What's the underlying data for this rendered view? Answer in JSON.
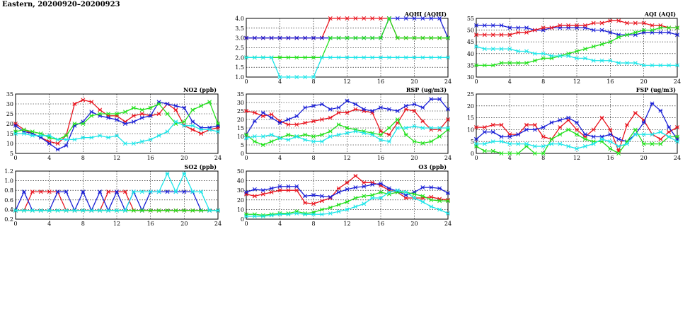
{
  "page": {
    "title": "Eastern, 20200920–20200923"
  },
  "colors": {
    "red": "#e8141e",
    "blue": "#1a1fd6",
    "green": "#22e01c",
    "cyan": "#1de5e8"
  },
  "chart_data": [
    {
      "id": "aqhi",
      "type": "line",
      "title": "AQHI (AQHI)",
      "xlim": [
        0,
        24
      ],
      "ylim": [
        1.0,
        4.0
      ],
      "xticks": [
        "0",
        "4",
        "8",
        "12",
        "16",
        "20",
        "24"
      ],
      "yticks": [
        "1.0",
        "1.5",
        "2.0",
        "2.5",
        "3.0",
        "3.5",
        "4.0"
      ],
      "grid": true,
      "series": [
        {
          "color": "red",
          "values": [
            3,
            3,
            3,
            3,
            3,
            3,
            3,
            3,
            3,
            3,
            4,
            4,
            4,
            4,
            4,
            4,
            4,
            4,
            3,
            3,
            3,
            3,
            3,
            3,
            3
          ]
        },
        {
          "color": "blue",
          "values": [
            3,
            3,
            3,
            3,
            3,
            3,
            3,
            3,
            3,
            3,
            3,
            3,
            3,
            3,
            3,
            3,
            3,
            4,
            4,
            4,
            4,
            4,
            4,
            4,
            3
          ]
        },
        {
          "color": "green",
          "values": [
            2,
            2,
            2,
            2,
            2,
            2,
            2,
            2,
            2,
            2,
            3,
            3,
            3,
            3,
            3,
            3,
            3,
            4,
            3,
            3,
            3,
            3,
            3,
            3,
            3
          ]
        },
        {
          "color": "cyan",
          "values": [
            2,
            2,
            2,
            2,
            1,
            1,
            1,
            1,
            1,
            2,
            2,
            2,
            2,
            2,
            2,
            2,
            2,
            2,
            2,
            2,
            2,
            2,
            2,
            2,
            2
          ]
        }
      ]
    },
    {
      "id": "aqi",
      "type": "line",
      "title": "AQI (AQI)",
      "xlim": [
        0,
        24
      ],
      "ylim": [
        30,
        55
      ],
      "xticks": [
        "0",
        "4",
        "8",
        "12",
        "16",
        "20",
        "24"
      ],
      "yticks": [
        "30",
        "35",
        "40",
        "45",
        "50",
        "55"
      ],
      "grid": true,
      "series": [
        {
          "color": "blue",
          "values": [
            52,
            52,
            52,
            52,
            51,
            51,
            51,
            50,
            50,
            51,
            51,
            51,
            51,
            51,
            50,
            50,
            49,
            48,
            48,
            48,
            49,
            49,
            49,
            49,
            48
          ]
        },
        {
          "color": "red",
          "values": [
            48,
            48,
            48,
            48,
            48,
            49,
            49,
            50,
            51,
            51,
            52,
            52,
            52,
            52,
            53,
            53,
            54,
            54,
            53,
            53,
            53,
            52,
            52,
            51,
            51
          ]
        },
        {
          "color": "green",
          "values": [
            35,
            35,
            35,
            36,
            36,
            36,
            36,
            37,
            38,
            38,
            39,
            40,
            41,
            42,
            43,
            44,
            45,
            47,
            48,
            49,
            50,
            50,
            51,
            51,
            51
          ]
        },
        {
          "color": "cyan",
          "values": [
            43,
            42,
            42,
            42,
            42,
            41,
            41,
            40,
            40,
            39,
            39,
            39,
            38,
            38,
            37,
            37,
            37,
            36,
            36,
            36,
            35,
            35,
            35,
            35,
            35
          ]
        }
      ]
    },
    {
      "id": "no2",
      "type": "line",
      "title": "NO2 (ppb)",
      "xlim": [
        0,
        24
      ],
      "ylim": [
        5,
        35
      ],
      "xticks": [
        "0",
        "4",
        "8",
        "12",
        "16",
        "20",
        "24"
      ],
      "yticks": [
        "5",
        "10",
        "15",
        "20",
        "25",
        "30",
        "35"
      ],
      "grid": true,
      "series": [
        {
          "color": "red",
          "values": [
            20,
            17,
            15,
            13,
            11,
            10,
            14,
            30,
            32,
            31,
            27,
            24,
            24,
            21,
            24,
            25,
            24,
            25,
            30,
            27,
            19,
            17,
            15,
            17,
            18
          ]
        },
        {
          "color": "blue",
          "values": [
            19,
            16,
            15,
            13,
            10,
            7,
            9,
            19,
            21,
            26,
            24,
            23,
            22,
            20,
            21,
            23,
            24,
            31,
            30,
            29,
            28,
            21,
            18,
            18,
            19
          ]
        },
        {
          "color": "green",
          "values": [
            16,
            17,
            16,
            15,
            13,
            12,
            14,
            20,
            20,
            24,
            25,
            25,
            25,
            26,
            28,
            27,
            28,
            30,
            25,
            20,
            21,
            27,
            29,
            31,
            20
          ]
        },
        {
          "color": "cyan",
          "values": [
            15,
            15,
            14,
            14,
            14,
            12,
            12,
            12,
            13,
            13,
            14,
            13,
            14,
            10,
            10,
            11,
            12,
            14,
            16,
            21,
            19,
            19,
            17,
            17,
            16
          ]
        }
      ]
    },
    {
      "id": "rsp",
      "type": "line",
      "title": "RSP (ug/m3)",
      "xlim": [
        0,
        24
      ],
      "ylim": [
        0,
        35
      ],
      "xticks": [
        "0",
        "4",
        "8",
        "12",
        "16",
        "20",
        "24"
      ],
      "yticks": [
        "0",
        "5",
        "10",
        "15",
        "20",
        "25",
        "30",
        "35"
      ],
      "grid": true,
      "series": [
        {
          "color": "red",
          "values": [
            25,
            24,
            22,
            23,
            19,
            17,
            17,
            18,
            19,
            20,
            21,
            24,
            24,
            26,
            25,
            24,
            13,
            11,
            18,
            26,
            25,
            19,
            14,
            14,
            20
          ]
        },
        {
          "color": "blue",
          "values": [
            11,
            19,
            24,
            21,
            18,
            20,
            22,
            27,
            28,
            29,
            26,
            27,
            31,
            29,
            26,
            25,
            27,
            26,
            25,
            28,
            29,
            27,
            32,
            32,
            26
          ]
        },
        {
          "color": "green",
          "values": [
            11,
            7,
            5,
            7,
            9,
            11,
            10,
            11,
            10,
            11,
            13,
            17,
            15,
            14,
            13,
            12,
            11,
            15,
            20,
            11,
            7,
            6,
            7,
            10,
            14
          ]
        },
        {
          "color": "cyan",
          "values": [
            9,
            10,
            10,
            11,
            9,
            8,
            10,
            8,
            7,
            7,
            10,
            11,
            12,
            13,
            12,
            11,
            8,
            7,
            15,
            15,
            16,
            15,
            15,
            15,
            15
          ]
        }
      ]
    },
    {
      "id": "fsp",
      "type": "line",
      "title": "FSP (ug/m3)",
      "xlim": [
        0,
        24
      ],
      "ylim": [
        0,
        25
      ],
      "xticks": [
        "0",
        "4",
        "8",
        "12",
        "16",
        "20",
        "24"
      ],
      "yticks": [
        "0",
        "5",
        "10",
        "15",
        "20",
        "25"
      ],
      "grid": true,
      "series": [
        {
          "color": "red",
          "values": [
            11,
            11,
            12,
            12,
            8,
            8,
            12,
            12,
            7,
            6,
            11,
            14,
            10,
            7,
            10,
            15,
            10,
            1,
            12,
            17,
            14,
            8,
            6,
            9,
            11
          ]
        },
        {
          "color": "blue",
          "values": [
            6,
            9,
            9,
            7,
            7,
            8,
            10,
            10,
            11,
            13,
            14,
            15,
            13,
            8,
            7,
            7,
            8,
            6,
            5,
            8,
            13,
            21,
            18,
            11,
            6
          ]
        },
        {
          "color": "green",
          "values": [
            3,
            1,
            1,
            0,
            0,
            0,
            3,
            0,
            0,
            6,
            8,
            10,
            8,
            6,
            5,
            5,
            2,
            0,
            5,
            10,
            4,
            4,
            4,
            7,
            7
          ]
        },
        {
          "color": "cyan",
          "values": [
            4,
            4,
            5,
            5,
            4,
            4,
            4,
            3,
            3,
            4,
            4,
            3,
            2,
            3,
            4,
            6,
            5,
            3,
            4,
            8,
            8,
            8,
            9,
            7,
            5
          ]
        }
      ]
    },
    {
      "id": "so2",
      "type": "line",
      "title": "SO2 (ppb)",
      "xlim": [
        0,
        24
      ],
      "ylim": [
        0.2,
        1.2
      ],
      "xticks": [
        "0",
        "4",
        "8",
        "12",
        "16",
        "20",
        "24"
      ],
      "yticks": [
        "0.2",
        "0.4",
        "0.6",
        "0.8",
        "1.0",
        "1.2"
      ],
      "grid": true,
      "series": [
        {
          "color": "red",
          "values": [
            0.38,
            0.38,
            0.77,
            0.77,
            0.77,
            0.77,
            0.38,
            0.38,
            0.38,
            0.38,
            0.38,
            0.77,
            0.77,
            0.77,
            0.38,
            0.38,
            0.38,
            0.38,
            0.38,
            0.38,
            0.38,
            0.38,
            0.38,
            0.38,
            0.38
          ]
        },
        {
          "color": "blue",
          "values": [
            0.38,
            0.77,
            0.38,
            0.38,
            0.38,
            0.77,
            0.77,
            0.38,
            0.77,
            0.38,
            0.77,
            0.38,
            0.77,
            0.38,
            0.77,
            0.38,
            0.77,
            0.77,
            0.77,
            0.77,
            0.77,
            0.77,
            0.38,
            0.38,
            0.38
          ]
        },
        {
          "color": "green",
          "values": [
            0.38,
            0.38,
            0.38,
            0.38,
            0.38,
            0.38,
            0.38,
            0.38,
            0.38,
            0.38,
            0.38,
            0.38,
            0.38,
            0.38,
            0.38,
            0.38,
            0.38,
            0.38,
            0.38,
            0.38,
            0.38,
            0.38,
            0.38,
            0.38,
            0.38
          ]
        },
        {
          "color": "cyan",
          "values": [
            0.38,
            0.38,
            0.38,
            0.38,
            0.38,
            0.38,
            0.38,
            0.38,
            0.38,
            0.38,
            0.38,
            0.38,
            0.38,
            0.38,
            0.77,
            0.77,
            0.77,
            0.77,
            1.15,
            0.77,
            1.15,
            0.77,
            0.77,
            0.38,
            0.38
          ]
        }
      ]
    },
    {
      "id": "o3",
      "type": "line",
      "title": "O3 (ppb)",
      "xlim": [
        0,
        24
      ],
      "ylim": [
        0,
        50
      ],
      "xticks": [
        "0",
        "4",
        "8",
        "12",
        "16",
        "20",
        "24"
      ],
      "yticks": [
        "0",
        "10",
        "20",
        "30",
        "40",
        "50"
      ],
      "grid": true,
      "series": [
        {
          "color": "red",
          "values": [
            26,
            24,
            26,
            28,
            30,
            30,
            30,
            17,
            16,
            19,
            22,
            32,
            38,
            45,
            38,
            38,
            35,
            30,
            28,
            22,
            22,
            22,
            23,
            21,
            20
          ]
        },
        {
          "color": "blue",
          "values": [
            28,
            31,
            30,
            32,
            34,
            34,
            34,
            24,
            25,
            24,
            23,
            28,
            31,
            33,
            34,
            36,
            37,
            32,
            29,
            25,
            28,
            33,
            33,
            32,
            27
          ]
        },
        {
          "color": "green",
          "values": [
            5,
            5,
            4,
            5,
            6,
            6,
            8,
            6,
            7,
            10,
            12,
            15,
            18,
            22,
            24,
            25,
            28,
            26,
            28,
            28,
            26,
            24,
            20,
            19,
            19
          ]
        },
        {
          "color": "cyan",
          "values": [
            3,
            3,
            3,
            4,
            5,
            5,
            6,
            5,
            5,
            5,
            6,
            8,
            10,
            13,
            16,
            22,
            22,
            28,
            30,
            28,
            22,
            18,
            13,
            10,
            6
          ]
        }
      ]
    }
  ]
}
